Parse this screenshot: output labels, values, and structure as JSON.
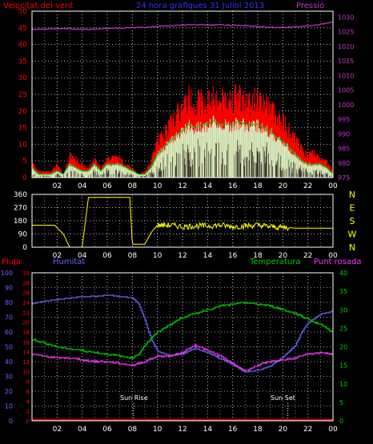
{
  "header": {
    "title": "24 hora gràfiques 31 Juliol 2013",
    "left_label": "Velocitat del vent",
    "right_label": "Pressió"
  },
  "colors": {
    "wind_gust": "#ff0000",
    "wind_avg": "#00cc00",
    "wind_low": "#ccffcc",
    "pressure": "#cc33cc",
    "direction": "#ffff00",
    "humidity": "#6666ff",
    "temperature": "#00cc00",
    "dewpoint": "#ff33ff",
    "rain": "#ff0000",
    "frame": "#ffffff",
    "grid": "#ffffff"
  },
  "chart_data": [
    {
      "type": "line",
      "panel": "wind",
      "title": "24 hora gràfiques 31 Juliol 2013",
      "ylabel": "Velocitat del vent",
      "y2label": "Pressió",
      "x_ticks": [
        "02",
        "04",
        "06",
        "08",
        "10",
        "12",
        "14",
        "16",
        "18",
        "20",
        "22",
        "00"
      ],
      "y_ticks": [
        0,
        5,
        10,
        15,
        20,
        25,
        30,
        35,
        40,
        45,
        50
      ],
      "y2_ticks": [
        975,
        980,
        985,
        990,
        995,
        1000,
        1005,
        1010,
        1015,
        1020,
        1025,
        1030
      ],
      "ylim": [
        0,
        50
      ],
      "y2lim": [
        975,
        1032
      ],
      "xlim": [
        0,
        24
      ],
      "series": [
        {
          "name": "gust",
          "x": [
            0,
            0.5,
            1,
            1.5,
            2,
            2.5,
            3,
            3.5,
            4,
            4.5,
            5,
            5.5,
            6,
            6.5,
            7,
            7.5,
            8,
            8.5,
            9,
            9.5,
            10,
            10.5,
            11,
            11.5,
            12,
            12.5,
            13,
            13.5,
            14,
            14.5,
            15,
            15.5,
            16,
            16.5,
            17,
            17.5,
            18,
            18.5,
            19,
            19.5,
            20,
            20.5,
            21,
            21.5,
            22,
            22.5,
            23,
            23.5,
            24
          ],
          "y": [
            5,
            2,
            2,
            2,
            4,
            1,
            7,
            6,
            4,
            3,
            6,
            3,
            6,
            7,
            6,
            4,
            3,
            1,
            2,
            5,
            12,
            14,
            17,
            20,
            22,
            26,
            24,
            25,
            24,
            27,
            24,
            26,
            25,
            27,
            24,
            25,
            25,
            24,
            23,
            20,
            18,
            15,
            13,
            9,
            7,
            8,
            6,
            5,
            2
          ]
        },
        {
          "name": "average",
          "x": [
            0,
            0.5,
            1,
            1.5,
            2,
            2.5,
            3,
            3.5,
            4,
            4.5,
            5,
            5.5,
            6,
            6.5,
            7,
            7.5,
            8,
            8.5,
            9,
            9.5,
            10,
            10.5,
            11,
            11.5,
            12,
            12.5,
            13,
            13.5,
            14,
            14.5,
            15,
            15.5,
            16,
            16.5,
            17,
            17.5,
            18,
            18.5,
            19,
            19.5,
            20,
            20.5,
            21,
            21.5,
            22,
            22.5,
            23,
            23.5,
            24
          ],
          "y": [
            3,
            1,
            1,
            1,
            2,
            1,
            4,
            3,
            2,
            2,
            4,
            2,
            4,
            4,
            4,
            3,
            2,
            1,
            1,
            3,
            7,
            9,
            11,
            13,
            14,
            16,
            15,
            16,
            16,
            17,
            16,
            16,
            16,
            17,
            16,
            16,
            16,
            15,
            14,
            12,
            11,
            9,
            7,
            5,
            4,
            4,
            4,
            3,
            1
          ]
        },
        {
          "name": "pressure",
          "x": [
            0,
            1,
            2,
            3,
            4,
            5,
            6,
            7,
            8,
            9,
            10,
            11,
            12,
            13,
            14,
            15,
            16,
            17,
            18,
            19,
            20,
            21,
            22,
            23,
            24
          ],
          "y": [
            1025.8,
            1025.9,
            1026,
            1026,
            1025.8,
            1025.9,
            1026.1,
            1026.2,
            1026.3,
            1026.5,
            1026.8,
            1027,
            1027.3,
            1027.4,
            1027.3,
            1027.3,
            1027.2,
            1027.1,
            1026.8,
            1026.5,
            1026.4,
            1026.6,
            1027,
            1027.5,
            1028.3
          ]
        }
      ]
    },
    {
      "type": "line",
      "panel": "direction",
      "x_ticks": [
        "02",
        "04",
        "06",
        "08",
        "10",
        "12",
        "14",
        "16",
        "18",
        "20",
        "22",
        "00"
      ],
      "y_ticks": [
        0,
        90,
        180,
        270,
        360
      ],
      "y2_ticks": [
        "N",
        "W",
        "S",
        "E",
        "N"
      ],
      "ylim": [
        0,
        360
      ],
      "xlim": [
        0,
        24
      ],
      "series": [
        {
          "name": "direction",
          "x": [
            0,
            1,
            1.8,
            2.5,
            3,
            3.5,
            4,
            4.5,
            5,
            6,
            7,
            7.8,
            8,
            9,
            9.5,
            10,
            11,
            12,
            13,
            14,
            15,
            16,
            17,
            18,
            19,
            20,
            21,
            22,
            23,
            24
          ],
          "y": [
            150,
            150,
            150,
            90,
            0,
            0,
            0,
            340,
            340,
            340,
            340,
            340,
            20,
            20,
            100,
            150,
            150,
            140,
            145,
            145,
            150,
            140,
            145,
            150,
            140,
            135,
            130,
            130,
            130,
            130
          ]
        }
      ]
    },
    {
      "type": "line",
      "panel": "temperature-humidity",
      "series_labels": [
        "Pluja",
        "Humitat",
        "Temperatura",
        "Punt rosada"
      ],
      "x_ticks": [
        "02",
        "04",
        "06",
        "08",
        "10",
        "12",
        "14",
        "16",
        "18",
        "20",
        "22",
        "00"
      ],
      "y_ticks_humidity": [
        0,
        10,
        20,
        30,
        40,
        50,
        60,
        70,
        80,
        90,
        100
      ],
      "y_ticks_rain": [
        0,
        2,
        4,
        6,
        8,
        10,
        12,
        14,
        16,
        18,
        20,
        22,
        24,
        26,
        28,
        30
      ],
      "y_ticks_temp": [
        0,
        5,
        10,
        15,
        20,
        25,
        30,
        35,
        40
      ],
      "annotations": [
        "Sun Rise",
        "Sun Set"
      ],
      "xlim": [
        0,
        24
      ],
      "series": [
        {
          "name": "Humitat",
          "x": [
            0,
            1,
            2,
            3,
            4,
            5,
            6,
            7,
            8,
            8.5,
            9,
            9.5,
            10,
            11,
            12,
            13,
            14,
            15,
            16,
            17,
            18,
            19,
            20,
            21,
            21.5,
            22,
            23,
            24
          ],
          "y": [
            79,
            81,
            82,
            83,
            84,
            84,
            85,
            84,
            83,
            79,
            68,
            55,
            47,
            44,
            45,
            49,
            46,
            42,
            38,
            33,
            34,
            37,
            43,
            51,
            60,
            66,
            72,
            74
          ]
        },
        {
          "name": "Temperatura",
          "x": [
            0,
            1,
            2,
            3,
            4,
            5,
            6,
            7,
            8,
            8.5,
            9,
            10,
            11,
            12,
            13,
            14,
            15,
            16,
            17,
            18,
            19,
            20,
            21,
            22,
            23,
            24
          ],
          "y": [
            22,
            21,
            20,
            19.5,
            19,
            18.5,
            18,
            17.5,
            17,
            18,
            20.5,
            24,
            26,
            28,
            29,
            30,
            31,
            31.5,
            32,
            31.5,
            31,
            30,
            29,
            27.5,
            26,
            24
          ]
        },
        {
          "name": "Punt rosada",
          "x": [
            0,
            1,
            2,
            3,
            4,
            5,
            6,
            7,
            8,
            9,
            10,
            11,
            12,
            13,
            14,
            15,
            16,
            17,
            18,
            19,
            20,
            21,
            22,
            23,
            24
          ],
          "y": [
            18,
            17.5,
            17,
            17,
            16.5,
            16,
            16,
            15.5,
            15,
            16,
            17.5,
            17.5,
            18.5,
            20.5,
            19,
            17.5,
            15.5,
            13.5,
            15,
            16,
            16.5,
            17,
            18,
            18.5,
            18
          ]
        },
        {
          "name": "Pluja",
          "x": [
            0,
            24
          ],
          "y": [
            0,
            0
          ]
        }
      ]
    }
  ]
}
